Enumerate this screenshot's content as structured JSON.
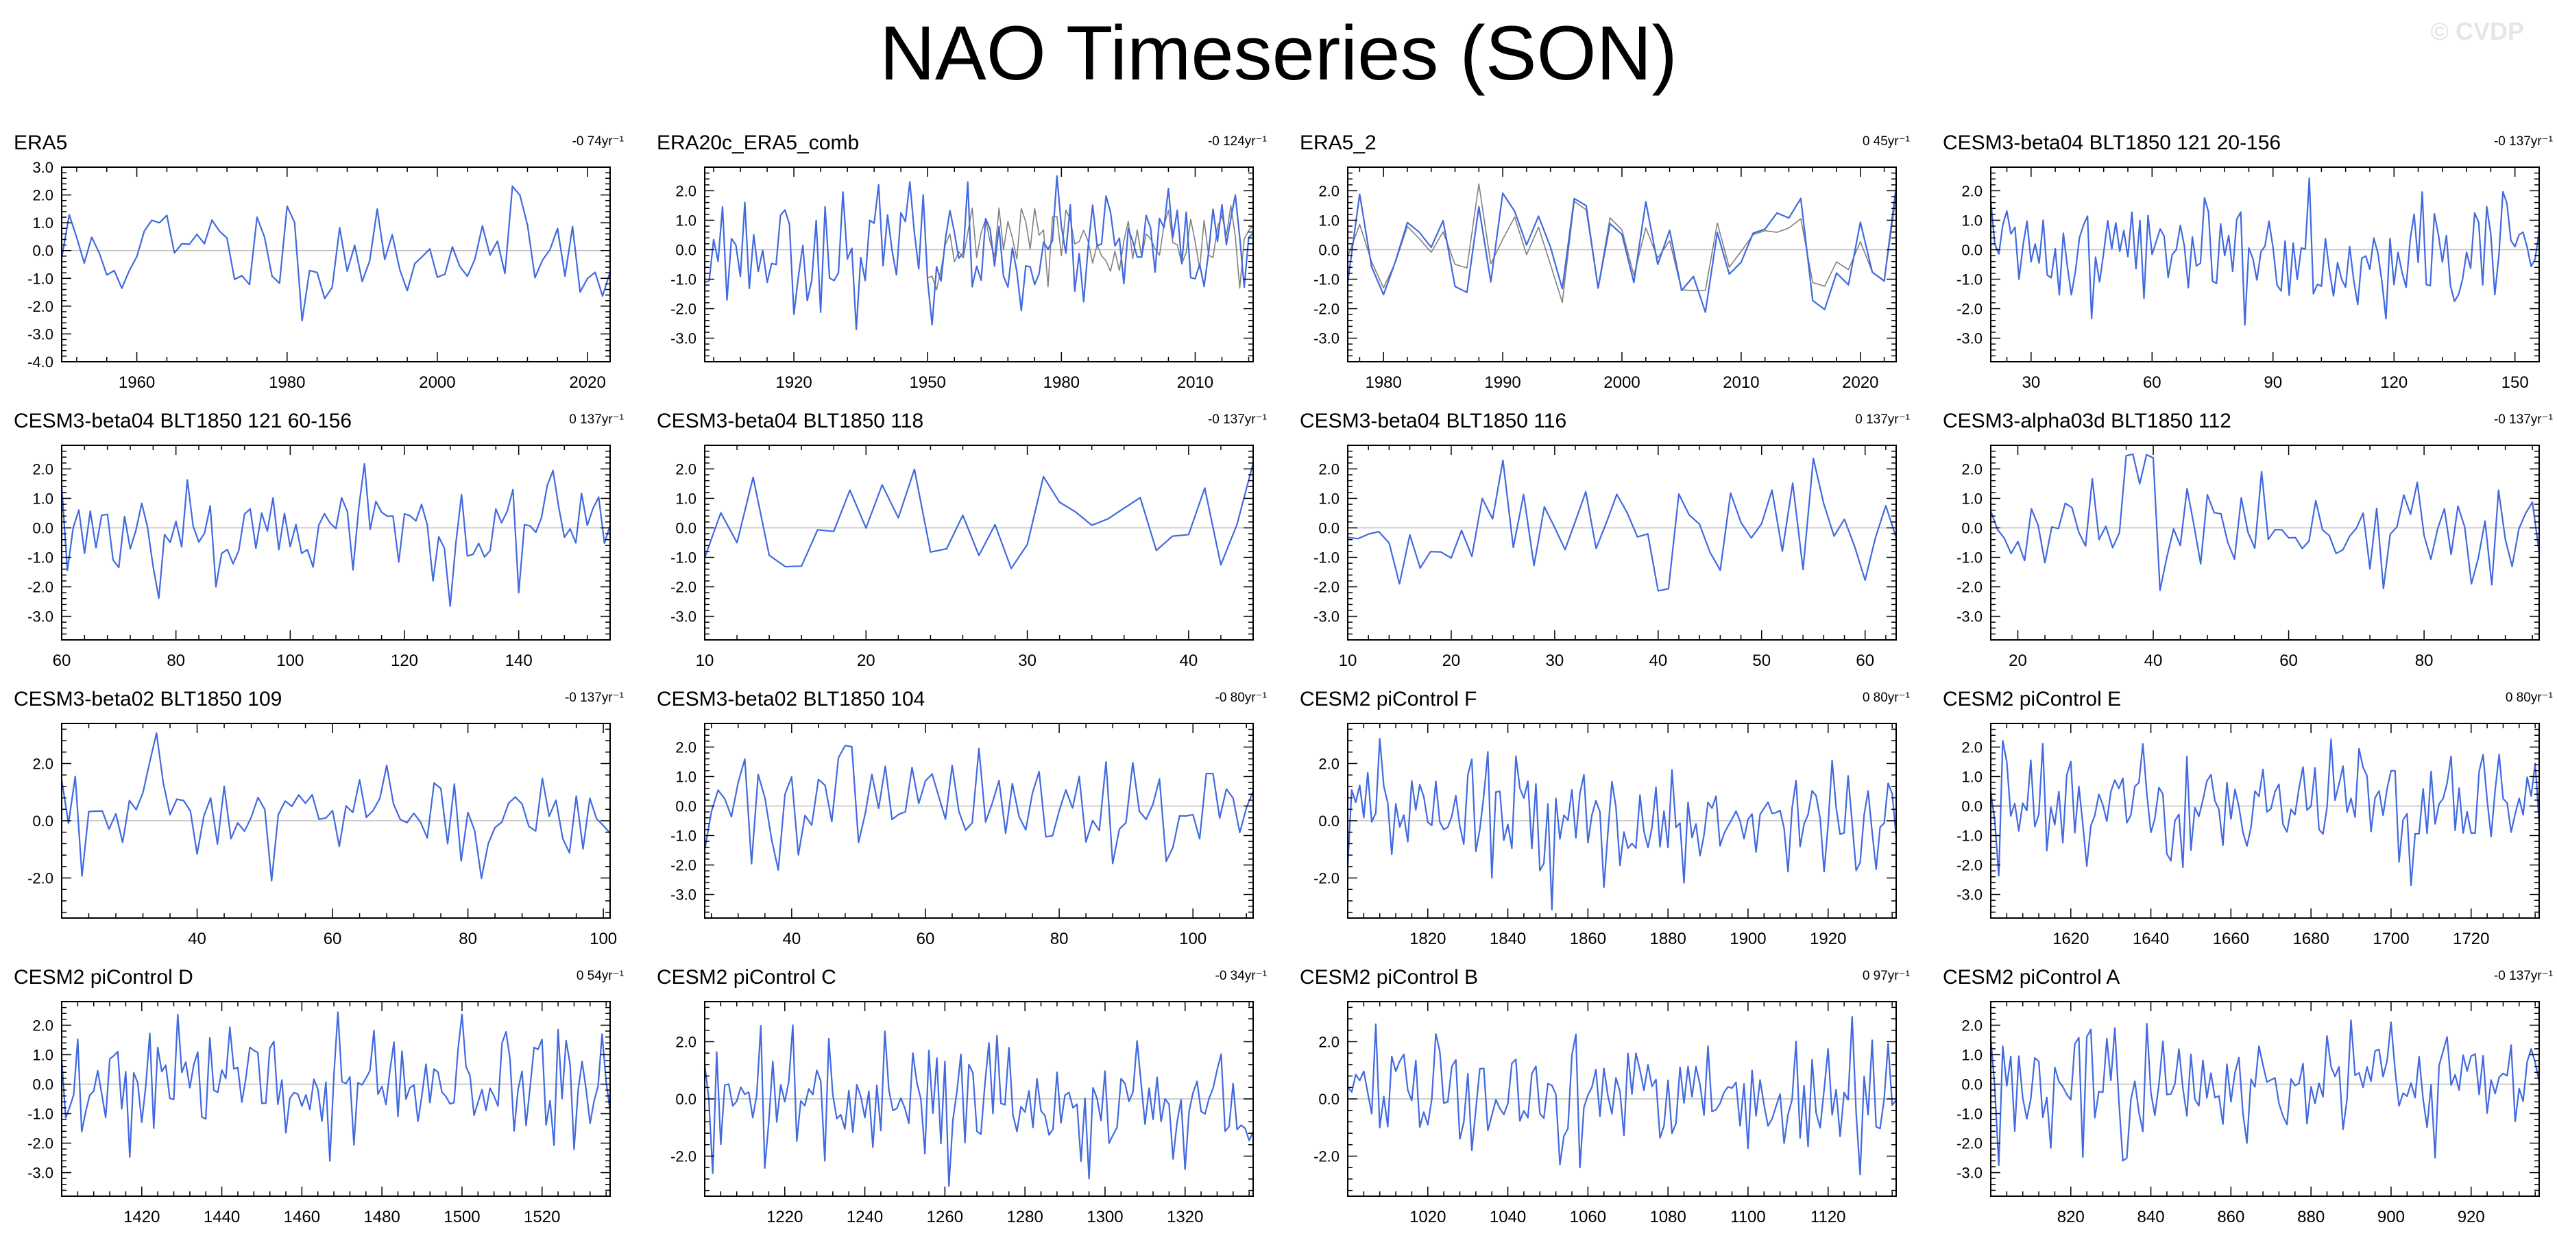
{
  "title": "NAO Timeseries (SON)",
  "watermark": "© CVDP",
  "colors": {
    "series": "#4169e1",
    "obs": "#808080",
    "zero": "#bdbdbd",
    "axis": "#000000"
  },
  "chart_data": [
    {
      "type": "line",
      "title": "ERA5",
      "trend": "-0 74yr⁻¹",
      "xlim": [
        1950,
        2023
      ],
      "ylim": [
        -4,
        3
      ],
      "yticks": [
        "3.0",
        "2.0",
        "1.0",
        "0.0",
        "-1.0",
        "-2.0",
        "-3.0",
        "-4.0"
      ],
      "ytick_values": [
        3,
        2,
        1,
        0,
        -1,
        -2,
        -3,
        -4
      ],
      "xticks": [
        1960,
        1980,
        2000,
        2020
      ],
      "series": [
        {
          "seed": 11,
          "sd": 1.0
        }
      ]
    },
    {
      "type": "line",
      "title": "ERA20c_ERA5_comb",
      "trend": "-0 124yr⁻¹",
      "xlim": [
        1900,
        2023
      ],
      "ylim": [
        -3.8,
        2.8
      ],
      "yticks": [
        "2.0",
        "1.0",
        "0.0",
        "-1.0",
        "-2.0",
        "-3.0"
      ],
      "ytick_values": [
        2,
        1,
        0,
        -1,
        -2,
        -3
      ],
      "xticks": [
        1920,
        1950,
        1980,
        2010
      ],
      "series": [
        {
          "seed": 23,
          "sd": 1.0
        },
        {
          "seed": 24,
          "sd": 0.9,
          "start": 1950,
          "obs": true
        }
      ]
    },
    {
      "type": "line",
      "title": "ERA5_2",
      "trend": "0 45yr⁻¹",
      "xlim": [
        1977,
        2023
      ],
      "ylim": [
        -3.8,
        2.8
      ],
      "yticks": [
        "2.0",
        "1.0",
        "0.0",
        "-1.0",
        "-2.0",
        "-3.0"
      ],
      "ytick_values": [
        2,
        1,
        0,
        -1,
        -2,
        -3
      ],
      "xticks": [
        1980,
        1990,
        2000,
        2010,
        2020
      ],
      "series": [
        {
          "seed": 37,
          "sd": 1.0
        },
        {
          "seed": 37,
          "sd": 0.9,
          "obs": true
        }
      ]
    },
    {
      "type": "line",
      "title": "CESM3-beta04 BLT1850 121 20-156",
      "trend": "-0 137yr⁻¹",
      "xlim": [
        20,
        156
      ],
      "ylim": [
        -3.8,
        2.8
      ],
      "yticks": [
        "2.0",
        "1.0",
        "0.0",
        "-1.0",
        "-2.0",
        "-3.0"
      ],
      "ytick_values": [
        2,
        1,
        0,
        -1,
        -2,
        -3
      ],
      "xticks": [
        30,
        60,
        90,
        120,
        150
      ],
      "series": [
        {
          "seed": 41,
          "sd": 1.0
        }
      ]
    },
    {
      "type": "line",
      "title": "CESM3-beta04 BLT1850 121 60-156",
      "trend": "0 137yr⁻¹",
      "xlim": [
        60,
        156
      ],
      "ylim": [
        -3.8,
        2.8
      ],
      "yticks": [
        "2.0",
        "1.0",
        "0.0",
        "-1.0",
        "-2.0",
        "-3.0"
      ],
      "ytick_values": [
        2,
        1,
        0,
        -1,
        -2,
        -3
      ],
      "xticks": [
        60,
        80,
        100,
        120,
        140
      ],
      "series": [
        {
          "seed": 53,
          "sd": 1.0
        }
      ]
    },
    {
      "type": "line",
      "title": "CESM3-beta04 BLT1850 118",
      "trend": "-0 137yr⁻¹",
      "xlim": [
        10,
        44
      ],
      "ylim": [
        -3.8,
        2.8
      ],
      "yticks": [
        "2.0",
        "1.0",
        "0.0",
        "-1.0",
        "-2.0",
        "-3.0"
      ],
      "ytick_values": [
        2,
        1,
        0,
        -1,
        -2,
        -3
      ],
      "xticks": [
        10,
        20,
        30,
        40
      ],
      "series": [
        {
          "seed": 67,
          "sd": 1.0
        }
      ]
    },
    {
      "type": "line",
      "title": "CESM3-beta04 BLT1850 116",
      "trend": "0 137yr⁻¹",
      "xlim": [
        10,
        63
      ],
      "ylim": [
        -3.8,
        2.8
      ],
      "yticks": [
        "2.0",
        "1.0",
        "0.0",
        "-1.0",
        "-2.0",
        "-3.0"
      ],
      "ytick_values": [
        2,
        1,
        0,
        -1,
        -2,
        -3
      ],
      "xticks": [
        10,
        20,
        30,
        40,
        50,
        60
      ],
      "series": [
        {
          "seed": 71,
          "sd": 1.0
        }
      ]
    },
    {
      "type": "line",
      "title": "CESM3-alpha03d BLT1850 112",
      "trend": "-0 137yr⁻¹",
      "xlim": [
        16,
        97
      ],
      "ylim": [
        -3.8,
        2.8
      ],
      "yticks": [
        "2.0",
        "1.0",
        "0.0",
        "-1.0",
        "-2.0",
        "-3.0"
      ],
      "ytick_values": [
        2,
        1,
        0,
        -1,
        -2,
        -3
      ],
      "xticks": [
        20,
        40,
        60,
        80
      ],
      "series": [
        {
          "seed": 83,
          "sd": 1.0
        }
      ]
    },
    {
      "type": "line",
      "title": "CESM3-beta02 BLT1850 109",
      "trend": "-0 137yr⁻¹",
      "xlim": [
        20,
        101
      ],
      "ylim": [
        -3.4,
        3.4
      ],
      "yticks": [
        "2.0",
        "0.0",
        "-2.0"
      ],
      "ytick_values": [
        2,
        0,
        -2
      ],
      "xticks": [
        40,
        60,
        80,
        100
      ],
      "series": [
        {
          "seed": 97,
          "sd": 1.0
        }
      ]
    },
    {
      "type": "line",
      "title": "CESM3-beta02 BLT1850 104",
      "trend": "-0 80yr⁻¹",
      "xlim": [
        27,
        109
      ],
      "ylim": [
        -3.8,
        2.8
      ],
      "yticks": [
        "2.0",
        "1.0",
        "0.0",
        "-1.0",
        "-2.0",
        "-3.0"
      ],
      "ytick_values": [
        2,
        1,
        0,
        -1,
        -2,
        -3
      ],
      "xticks": [
        40,
        60,
        80,
        100
      ],
      "series": [
        {
          "seed": 101,
          "sd": 1.0
        }
      ]
    },
    {
      "type": "line",
      "title": "CESM2 piControl F",
      "trend": "0 80yr⁻¹",
      "xlim": [
        1800,
        1937
      ],
      "ylim": [
        -3.4,
        3.4
      ],
      "yticks": [
        "2.0",
        "0.0",
        "-2.0"
      ],
      "ytick_values": [
        2,
        0,
        -2
      ],
      "xticks": [
        1820,
        1840,
        1860,
        1880,
        1900,
        1920
      ],
      "series": [
        {
          "seed": 113,
          "sd": 1.0
        }
      ]
    },
    {
      "type": "line",
      "title": "CESM2 piControl E",
      "trend": "0 80yr⁻¹",
      "xlim": [
        1600,
        1737
      ],
      "ylim": [
        -3.8,
        2.8
      ],
      "yticks": [
        "2.0",
        "1.0",
        "0.0",
        "-1.0",
        "-2.0",
        "-3.0"
      ],
      "ytick_values": [
        2,
        1,
        0,
        -1,
        -2,
        -3
      ],
      "xticks": [
        1620,
        1640,
        1660,
        1680,
        1700,
        1720
      ],
      "series": [
        {
          "seed": 127,
          "sd": 1.0
        }
      ]
    },
    {
      "type": "line",
      "title": "CESM2 piControl D",
      "trend": "0 54yr⁻¹",
      "xlim": [
        1400,
        1537
      ],
      "ylim": [
        -3.8,
        2.8
      ],
      "yticks": [
        "2.0",
        "1.0",
        "0.0",
        "-1.0",
        "-2.0",
        "-3.0"
      ],
      "ytick_values": [
        2,
        1,
        0,
        -1,
        -2,
        -3
      ],
      "xticks": [
        1420,
        1440,
        1460,
        1480,
        1500,
        1520
      ],
      "series": [
        {
          "seed": 131,
          "sd": 1.0
        }
      ]
    },
    {
      "type": "line",
      "title": "CESM2 piControl C",
      "trend": "-0 34yr⁻¹",
      "xlim": [
        1200,
        1337
      ],
      "ylim": [
        -3.4,
        3.4
      ],
      "yticks": [
        "2.0",
        "0.0",
        "-2.0"
      ],
      "ytick_values": [
        2,
        0,
        -2
      ],
      "xticks": [
        1220,
        1240,
        1260,
        1280,
        1300,
        1320
      ],
      "series": [
        {
          "seed": 139,
          "sd": 1.0
        }
      ]
    },
    {
      "type": "line",
      "title": "CESM2 piControl B",
      "trend": "0 97yr⁻¹",
      "xlim": [
        1000,
        1137
      ],
      "ylim": [
        -3.4,
        3.4
      ],
      "yticks": [
        "2.0",
        "0.0",
        "-2.0"
      ],
      "ytick_values": [
        2,
        0,
        -2
      ],
      "xticks": [
        1020,
        1040,
        1060,
        1080,
        1100,
        1120
      ],
      "series": [
        {
          "seed": 149,
          "sd": 1.0
        }
      ]
    },
    {
      "type": "line",
      "title": "CESM2 piControl A",
      "trend": "-0 137yr⁻¹",
      "xlim": [
        800,
        937
      ],
      "ylim": [
        -3.8,
        2.8
      ],
      "yticks": [
        "2.0",
        "1.0",
        "0.0",
        "-1.0",
        "-2.0",
        "-3.0"
      ],
      "ytick_values": [
        2,
        1,
        0,
        -1,
        -2,
        -3
      ],
      "xticks": [
        820,
        840,
        860,
        880,
        900,
        920
      ],
      "series": [
        {
          "seed": 151,
          "sd": 1.0
        }
      ]
    }
  ]
}
